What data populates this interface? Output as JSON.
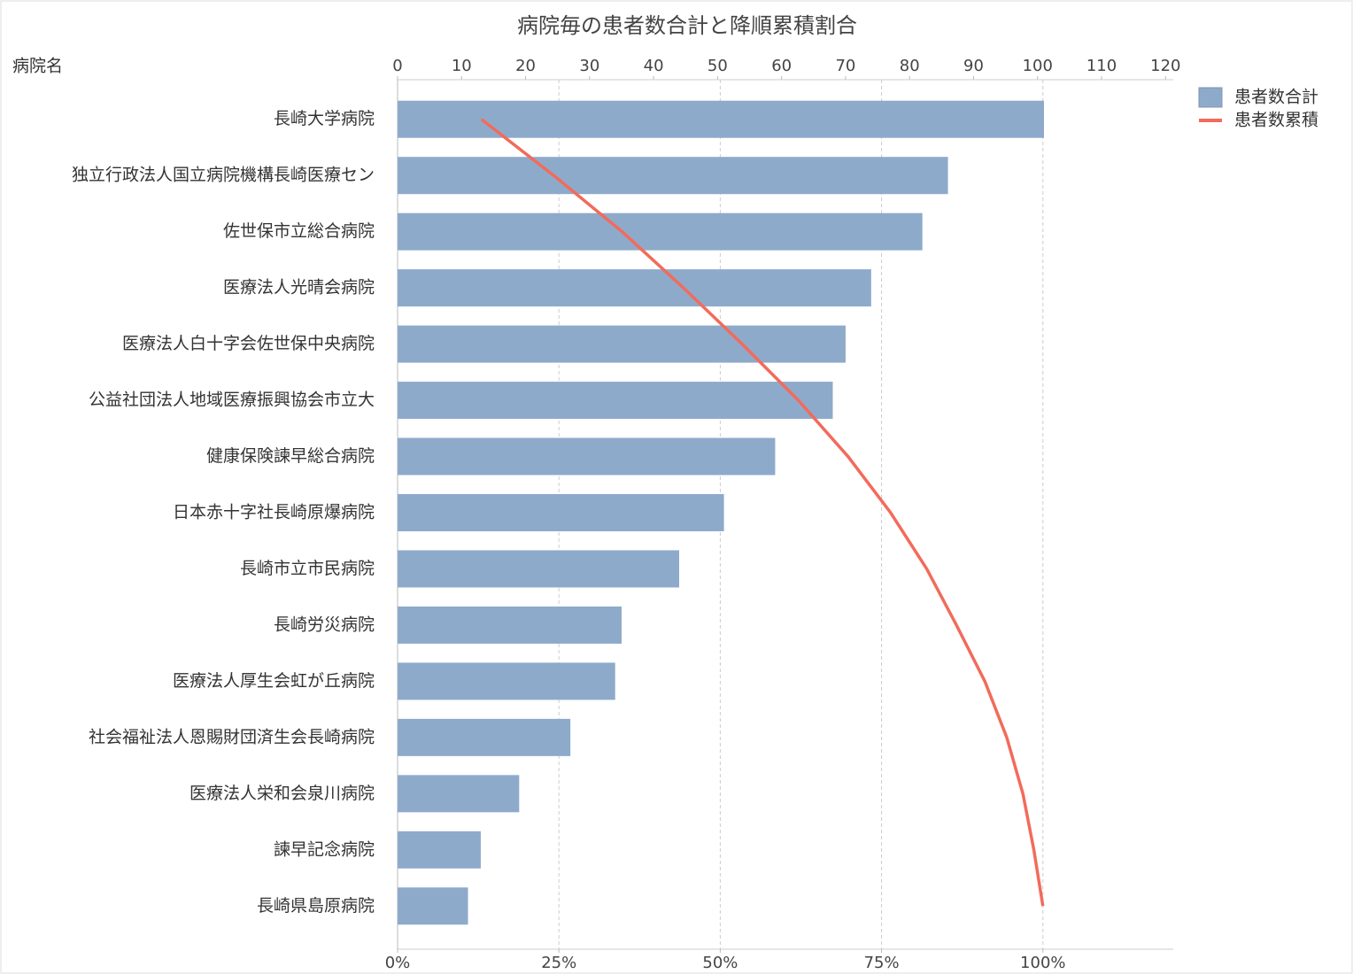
{
  "chart_data": {
    "type": "bar",
    "title": "病院毎の患者数合計と降順累積割合",
    "y_label": "病院名",
    "categories": [
      "長崎大学病院",
      "独立行政法人国立病院機構長崎医療セン",
      "佐世保市立総合病院",
      "医療法人光晴会病院",
      "医療法人白十字会佐世保中央病院",
      "公益社団法人地域医療振興協会市立大",
      "健康保険諫早総合病院",
      "日本赤十字社長崎原爆病院",
      "長崎市立市民病院",
      "長崎労災病院",
      "医療法人厚生会虹が丘病院",
      "社会福祉法人恩賜財団済生会長崎病院",
      "医療法人栄和会泉川病院",
      "諫早記念病院",
      "長崎県島原病院"
    ],
    "series": [
      {
        "name": "患者数合計",
        "color": "#8eaacb",
        "values": [
          101,
          86,
          82,
          74,
          70,
          68,
          59,
          51,
          44,
          35,
          34,
          27,
          19,
          13,
          11
        ]
      },
      {
        "name": "患者数累積",
        "color": "#f26b5b",
        "type": "line",
        "axis": "x2",
        "values": [
          13.0,
          24.2,
          34.8,
          44.3,
          53.4,
          62.1,
          69.8,
          76.4,
          82.0,
          86.6,
          91.0,
          94.4,
          96.9,
          98.6,
          100.0
        ]
      }
    ],
    "xlim": [
      0,
      121.2
    ],
    "xticks": [
      0,
      10,
      20,
      30,
      40,
      50,
      60,
      70,
      80,
      90,
      100,
      110,
      120
    ],
    "x2lim": [
      0,
      120.2
    ],
    "x2ticks": [
      {
        "value": 0,
        "label": "0%"
      },
      {
        "value": 25,
        "label": "25%"
      },
      {
        "value": 50,
        "label": "50%"
      },
      {
        "value": 75,
        "label": "75%"
      },
      {
        "value": 100,
        "label": "100%"
      }
    ],
    "grid": true,
    "legend": "top-right"
  }
}
